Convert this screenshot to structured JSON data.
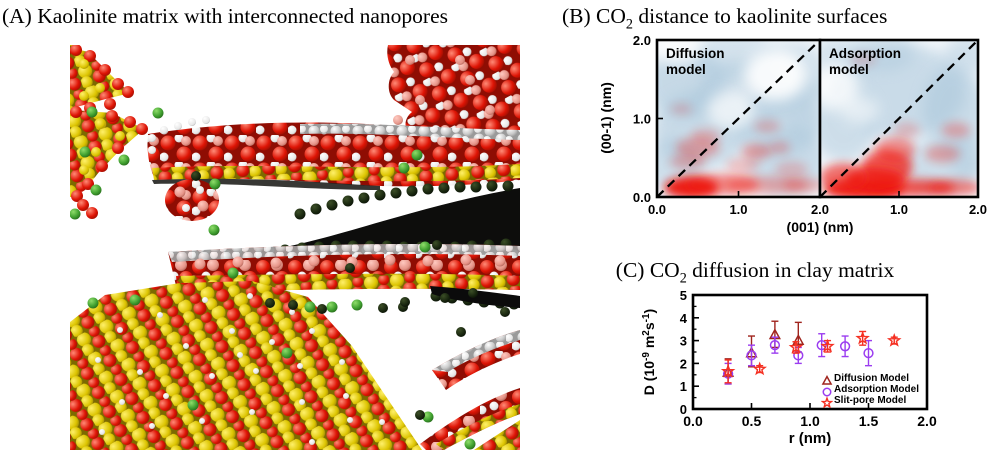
{
  "figure": {
    "panel_a_title": "(A) Kaolinite matrix with interconnected nanopores",
    "panel_b_title": {
      "pre": "(B) CO",
      "sub": "2",
      "post": " distance to kaolinite surfaces"
    },
    "panel_c_title": {
      "pre": "(C) CO",
      "sub": "2",
      "post": " diffusion in clay matrix"
    },
    "panel_a_atom_colors": {
      "oxygen": "#d81405",
      "hydrogen": "#f0f0f0",
      "silicon": "#ddc400",
      "aluminum": "#e89a90",
      "co2_bright": "#4faa3c",
      "co2_shadowed": "#16260e"
    }
  },
  "chart_data": [
    {
      "id": "co2-distance-density",
      "type": "heatmap",
      "title": "(B) CO2 distance to kaolinite surfaces",
      "xlabel": "(001) (nm)",
      "ylabel": "(00-1) (nm)",
      "xlim": [
        0,
        2
      ],
      "ylim": [
        0,
        2
      ],
      "colors": {
        "high_density": "#ee150d",
        "low_density": "#a9c6da",
        "background": "#f2f6fa"
      },
      "y_ticks": [
        {
          "v": 0,
          "label": "0.0"
        },
        {
          "v": 1,
          "label": "1.0"
        },
        {
          "v": 2,
          "label": "2.0"
        }
      ],
      "panels": [
        {
          "label_lines": [
            "Diffusion",
            "model"
          ],
          "diagonal_dashed_line": true,
          "x_ticks": [
            {
              "v": 0,
              "label": "0.0"
            },
            {
              "v": 1,
              "label": "1.0"
            },
            {
              "v": 2,
              "label": "2.0"
            }
          ],
          "blobs": {
            "blue": [
              [
                0.35,
                1.45,
                0.5,
                0.45,
                0.6
              ],
              [
                1.05,
                1.25,
                0.55,
                0.5,
                0.5
              ],
              [
                0.55,
                0.85,
                0.6,
                0.5,
                0.55
              ],
              [
                1.6,
                0.45,
                0.5,
                0.45,
                0.55
              ],
              [
                1.65,
                1.55,
                0.45,
                0.42,
                0.45
              ],
              [
                0.95,
                1.8,
                0.5,
                0.3,
                0.4
              ],
              [
                1.5,
                0.95,
                0.5,
                0.45,
                0.45
              ],
              [
                0.2,
                0.4,
                0.35,
                0.35,
                0.5
              ],
              [
                1.85,
                1.1,
                0.3,
                0.4,
                0.4
              ]
            ],
            "white": [
              [
                1.45,
                1.55,
                0.38,
                0.33,
                0.9
              ],
              [
                0.9,
                1.1,
                0.3,
                0.25,
                0.7
              ],
              [
                0.25,
                1.9,
                0.3,
                0.2,
                0.8
              ]
            ],
            "red": [
              [
                0.42,
                0.12,
                0.33,
                0.14,
                0.95
              ],
              [
                0.8,
                0.16,
                0.45,
                0.13,
                0.5
              ],
              [
                1.35,
                0.15,
                0.5,
                0.11,
                0.3
              ],
              [
                1.8,
                0.15,
                0.25,
                0.1,
                0.25
              ],
              [
                0.5,
                0.63,
                0.27,
                0.13,
                0.3
              ],
              [
                0.38,
                0.45,
                0.22,
                0.1,
                0.25
              ],
              [
                1.22,
                0.58,
                0.18,
                0.1,
                0.33
              ],
              [
                1.5,
                0.63,
                0.13,
                0.08,
                0.25
              ],
              [
                1.05,
                0.4,
                0.2,
                0.1,
                0.22
              ],
              [
                1.35,
                0.9,
                0.16,
                0.08,
                0.22
              ],
              [
                0.6,
                0.78,
                0.18,
                0.09,
                0.22
              ],
              [
                0.3,
                1.12,
                0.13,
                0.07,
                0.18
              ],
              [
                1.65,
                0.35,
                0.2,
                0.1,
                0.2
              ]
            ]
          }
        },
        {
          "label_lines": [
            "Adsorption",
            "model"
          ],
          "diagonal_dashed_line": true,
          "x_ticks": [
            {
              "v": 1,
              "label": "1.0"
            },
            {
              "v": 2,
              "label": "2.0"
            }
          ],
          "blobs": {
            "blue": [
              [
                1.0,
                1.35,
                0.85,
                0.6,
                0.55
              ],
              [
                1.7,
                1.1,
                0.4,
                0.55,
                0.55
              ],
              [
                0.3,
                0.95,
                0.42,
                0.5,
                0.5
              ],
              [
                1.5,
                0.4,
                0.5,
                0.35,
                0.5
              ],
              [
                0.25,
                1.75,
                0.35,
                0.28,
                0.4
              ],
              [
                0.8,
                1.85,
                0.4,
                0.25,
                0.4
              ],
              [
                1.85,
                1.8,
                0.28,
                0.25,
                0.45
              ],
              [
                1.9,
                0.5,
                0.25,
                0.3,
                0.45
              ]
            ],
            "white": [
              [
                0.2,
                1.4,
                0.3,
                0.3,
                0.8
              ],
              [
                0.5,
                1.1,
                0.25,
                0.2,
                0.6
              ]
            ],
            "red": [
              [
                0.55,
                0.1,
                0.5,
                0.13,
                0.9
              ],
              [
                1.15,
                0.12,
                0.55,
                0.11,
                0.7
              ],
              [
                1.7,
                0.12,
                0.33,
                0.1,
                0.5
              ],
              [
                0.85,
                0.38,
                0.32,
                0.22,
                0.7
              ],
              [
                0.95,
                0.6,
                0.25,
                0.16,
                0.45
              ],
              [
                0.7,
                0.22,
                0.38,
                0.16,
                0.75
              ],
              [
                1.55,
                0.55,
                0.22,
                0.11,
                0.3
              ],
              [
                1.72,
                0.85,
                0.18,
                0.1,
                0.28
              ],
              [
                0.55,
                1.75,
                0.16,
                0.08,
                0.15
              ],
              [
                1.1,
                0.85,
                0.16,
                0.1,
                0.2
              ],
              [
                0.3,
                0.25,
                0.3,
                0.18,
                0.6
              ]
            ]
          }
        }
      ]
    },
    {
      "id": "co2-diffusion-scatter",
      "type": "scatter",
      "title": "(C) CO2 diffusion in clay matrix",
      "xlabel": "r (nm)",
      "ylabel": "D (10-9 m2 s-1)",
      "ylabel_parts": [
        {
          "t": "D (10"
        },
        {
          "t": "-9",
          "sup": true
        },
        {
          "t": " m"
        },
        {
          "t": "2",
          "sup": true
        },
        {
          "t": "s"
        },
        {
          "t": "-1",
          "sup": true
        },
        {
          "t": ")"
        }
      ],
      "xlim": [
        0,
        2
      ],
      "ylim": [
        0,
        5
      ],
      "x_ticks": [
        {
          "v": 0,
          "label": "0.0"
        },
        {
          "v": 0.5,
          "label": "0.5"
        },
        {
          "v": 1,
          "label": "1.0"
        },
        {
          "v": 1.5,
          "label": "1.5"
        },
        {
          "v": 2,
          "label": "2.0"
        }
      ],
      "y_ticks": [
        {
          "v": 0,
          "label": "0"
        },
        {
          "v": 1,
          "label": "1"
        },
        {
          "v": 2,
          "label": "2"
        },
        {
          "v": 3,
          "label": "3"
        },
        {
          "v": 4,
          "label": "4"
        },
        {
          "v": 5,
          "label": "5"
        }
      ],
      "legend_position": "bottom-right",
      "series": [
        {
          "name": "Diffusion Model",
          "marker": "triangle",
          "color": "#a0251e",
          "points": [
            {
              "x": 0.3,
              "y": 1.6,
              "err": [
                0.5,
                0.6
              ]
            },
            {
              "x": 0.5,
              "y": 2.45,
              "err": [
                0.6,
                0.75
              ]
            },
            {
              "x": 0.7,
              "y": 3.25,
              "err": [
                0.55,
                0.6
              ]
            },
            {
              "x": 0.9,
              "y": 3.0,
              "err": [
                0.5,
                0.8
              ]
            }
          ]
        },
        {
          "name": "Adsorption Model",
          "marker": "circle",
          "color": "#9b3df0",
          "points": [
            {
              "x": 0.3,
              "y": 1.55,
              "err": 0.45
            },
            {
              "x": 0.5,
              "y": 2.35,
              "err": 0.45
            },
            {
              "x": 0.7,
              "y": 2.8,
              "err": 0.35
            },
            {
              "x": 0.9,
              "y": 2.35,
              "err": 0.35
            },
            {
              "x": 1.1,
              "y": 2.8,
              "err": 0.5
            },
            {
              "x": 1.3,
              "y": 2.75,
              "err": 0.45
            },
            {
              "x": 1.5,
              "y": 2.45,
              "err": 0.55
            }
          ]
        },
        {
          "name": "Slit-pore Model",
          "marker": "star",
          "color": "#f53022",
          "points": [
            {
              "x": 0.3,
              "y": 1.65,
              "err": 0.5
            },
            {
              "x": 0.57,
              "y": 1.75,
              "err": 0.15
            },
            {
              "x": 0.88,
              "y": 2.7,
              "err": 0.25
            },
            {
              "x": 1.15,
              "y": 2.75,
              "err": 0.25
            },
            {
              "x": 1.45,
              "y": 3.1,
              "err": 0.3
            },
            {
              "x": 1.72,
              "y": 3.0,
              "err": 0.15
            }
          ]
        }
      ]
    }
  ]
}
